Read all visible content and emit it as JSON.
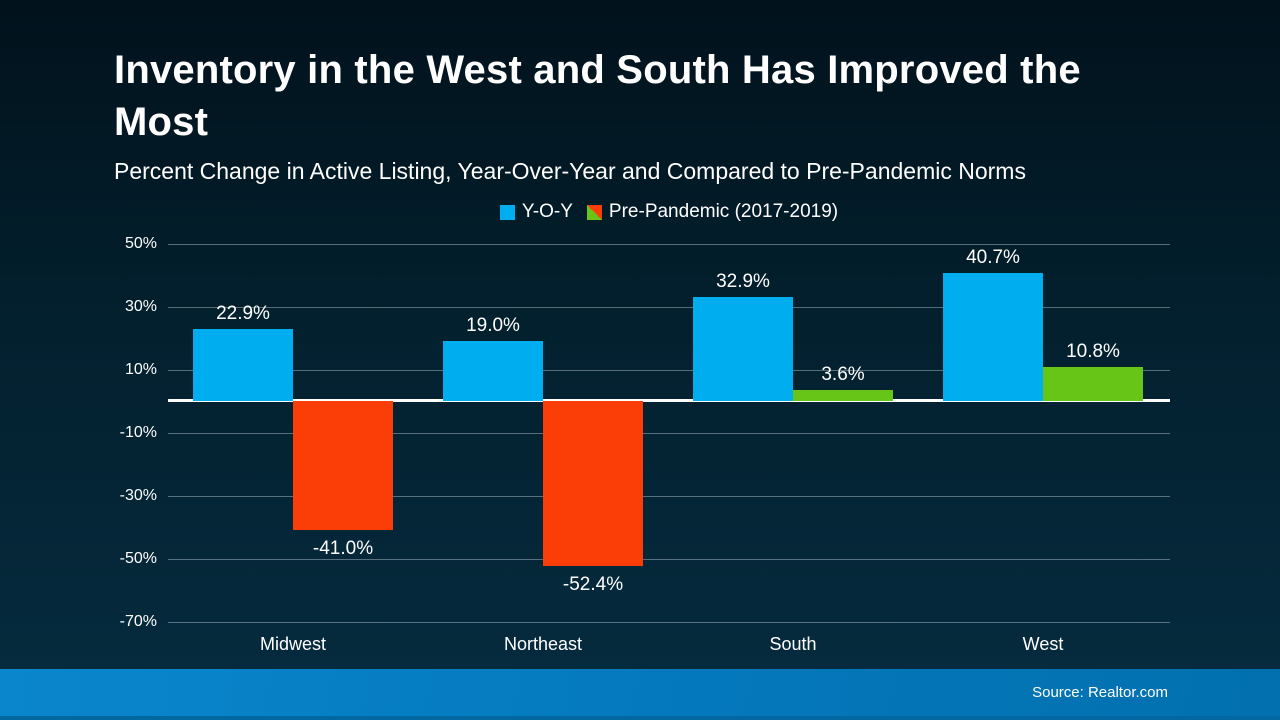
{
  "header": {
    "title": "Inventory in the West and South Has Improved the Most",
    "subtitle": "Percent Change in Active Listing, Year-Over-Year and Compared to Pre-Pandemic Norms"
  },
  "legend": {
    "items": [
      {
        "label": "Y-O-Y",
        "swatch_icon": "blue-square-icon",
        "color": "#00aeef"
      },
      {
        "label": "Pre-Pandemic (2017-2019)",
        "swatch_icon": "split-red-green-square-icon",
        "color_negative": "#fb3e08",
        "color_positive": "#66c516"
      }
    ]
  },
  "chart_data": {
    "type": "bar",
    "title": "Inventory in the West and South Has Improved the Most",
    "subtitle": "Percent Change in Active Listing, Year-Over-Year and Compared to Pre-Pandemic Norms",
    "categories": [
      "Midwest",
      "Northeast",
      "South",
      "West"
    ],
    "series": [
      {
        "name": "Y-O-Y",
        "values": [
          22.9,
          19.0,
          32.9,
          40.7
        ],
        "labels": [
          "22.9%",
          "19.0%",
          "32.9%",
          "40.7%"
        ],
        "color": "#00aeef"
      },
      {
        "name": "Pre-Pandemic (2017-2019)",
        "values": [
          -41.0,
          -52.4,
          3.6,
          10.8
        ],
        "labels": [
          "-41.0%",
          "-52.4%",
          "3.6%",
          "10.8%"
        ],
        "color_positive": "#66c516",
        "color_negative": "#fb3e08"
      }
    ],
    "y_ticks": [
      "50%",
      "30%",
      "10%",
      "-10%",
      "-30%",
      "-50%",
      "-70%"
    ],
    "y_tick_values": [
      50,
      30,
      10,
      -10,
      -30,
      -50,
      -70
    ],
    "ylim": [
      -70,
      50
    ],
    "grid": true,
    "zero_line": true,
    "legend_position": "top-center",
    "xlabel": "",
    "ylabel": ""
  },
  "colors": {
    "background_top": "#01121c",
    "background_bottom": "#062c40",
    "yoy_blue": "#00aeef",
    "negative_red": "#fb3e08",
    "positive_green": "#66c516",
    "gridline": "#8499a4",
    "zero_line": "#ffffff",
    "text": "#ffffff",
    "footer_blue_left": "#0a86cd",
    "footer_blue_right": "#0270ae"
  },
  "footer": {
    "source": "Source: Realtor.com"
  }
}
